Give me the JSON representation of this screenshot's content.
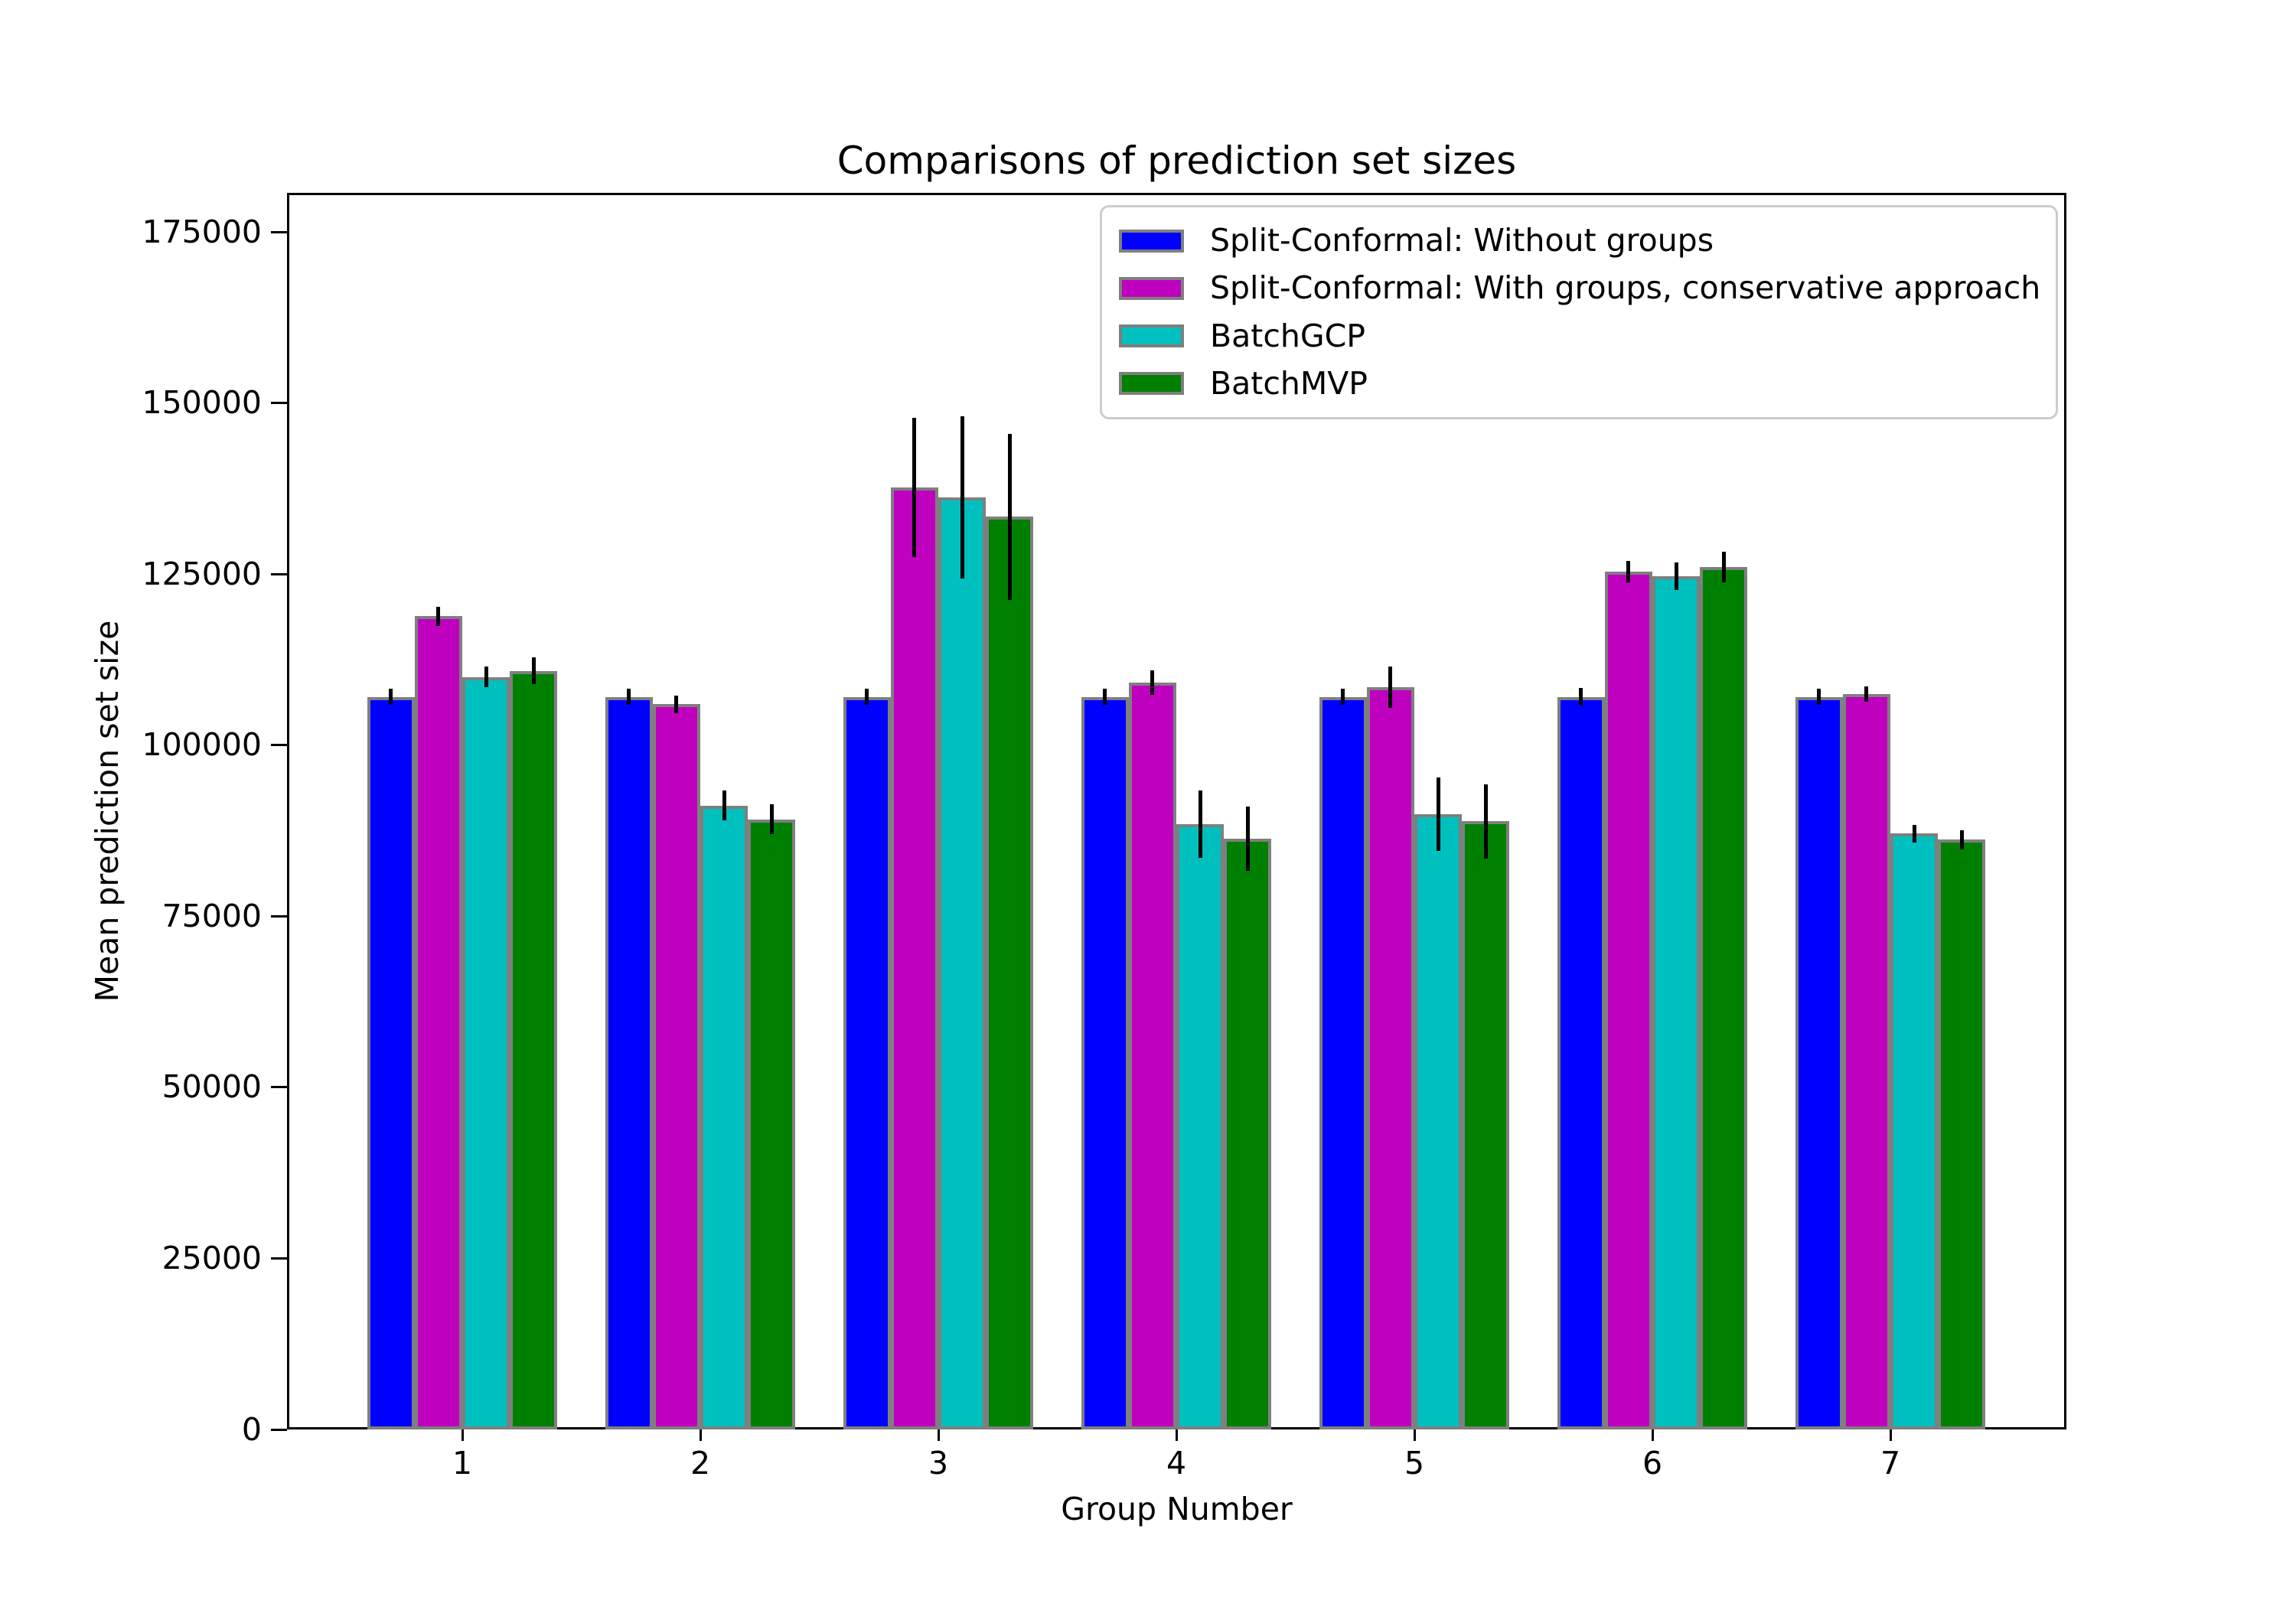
{
  "title": "Comparisons of prediction set sizes",
  "axes": {
    "xlabel": "Group Number",
    "ylabel": "Mean prediction set size",
    "xticks": [
      "1",
      "2",
      "3",
      "4",
      "5",
      "6",
      "7"
    ],
    "yticks": [
      "0",
      "25000",
      "50000",
      "75000",
      "100000",
      "125000",
      "150000",
      "175000"
    ]
  },
  "colors": {
    "background": "#ffffff",
    "axis": "#000000",
    "bar_edge": "#7f7f7f",
    "error_bar": "#000000",
    "legend_border": "#cccccc"
  },
  "legend": {
    "entries": [
      {
        "label": "Split-Conformal: Without groups",
        "color": "#0000ff"
      },
      {
        "label": "Split-Conformal: With groups, conservative approach",
        "color": "#bf00bf"
      },
      {
        "label": "BatchGCP",
        "color": "#00bfbf"
      },
      {
        "label": "BatchMVP",
        "color": "#008000"
      }
    ]
  },
  "chart_data": {
    "type": "bar",
    "title": "Comparisons of prediction set sizes",
    "xlabel": "Group Number",
    "ylabel": "Mean prediction set size",
    "categories": [
      "1",
      "2",
      "3",
      "4",
      "5",
      "6",
      "7"
    ],
    "series": [
      {
        "name": "Split-Conformal: Without groups",
        "color": "#0000ff",
        "values": [
          107100,
          107100,
          107100,
          107100,
          107100,
          107100,
          107100
        ],
        "errors": [
          1150,
          1150,
          1150,
          1150,
          1150,
          1250,
          1150
        ]
      },
      {
        "name": "Split-Conformal: With groups, conservative approach",
        "color": "#bf00bf",
        "values": [
          118900,
          106000,
          137700,
          109200,
          108500,
          125400,
          107500
        ],
        "errors": [
          1400,
          1300,
          10200,
          1770,
          3000,
          1600,
          1160
        ]
      },
      {
        "name": "BatchGCP",
        "color": "#00bfbf",
        "values": [
          110000,
          91200,
          136200,
          88500,
          89900,
          124700,
          87100
        ],
        "errors": [
          1500,
          2150,
          11850,
          4900,
          5350,
          2000,
          1310
        ]
      },
      {
        "name": "BatchMVP",
        "color": "#008000",
        "values": [
          110900,
          89200,
          133400,
          86300,
          88900,
          126100,
          86200
        ],
        "errors": [
          1950,
          2200,
          12100,
          4700,
          5450,
          2240,
          1360
        ]
      }
    ],
    "yticks": [
      0,
      25000,
      50000,
      75000,
      100000,
      125000,
      150000,
      175000
    ],
    "ylim": [
      0,
      180760
    ],
    "grid": false,
    "legend_position": "upper right",
    "error_bars": true
  }
}
